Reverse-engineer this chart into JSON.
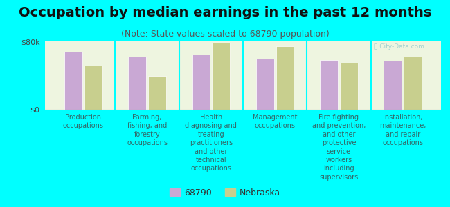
{
  "title": "Occupation by median earnings in the past 12 months",
  "subtitle": "(Note: State values scaled to 68790 population)",
  "categories": [
    "Production\noccupations",
    "Farming,\nfishing, and\nforestry\noccupations",
    "Health\ndiagnosing and\ntreating\npractitioners\nand other\ntechnical\noccupations",
    "Management\noccupations",
    "Fire fighting\nand prevention,\nand other\nprotective\nservice\nworkers\nincluding\nsupervisors",
    "Installation,\nmaintenance,\nand repair\noccupations"
  ],
  "values_68790": [
    68000,
    62000,
    65000,
    60000,
    58000,
    57000
  ],
  "values_nebraska": [
    52000,
    40000,
    78000,
    74000,
    55000,
    62000
  ],
  "bar_color_68790": "#c9a8d4",
  "bar_color_nebraska": "#c8cf8e",
  "background_color": "#00ffff",
  "plot_bg_color": "#eef5e0",
  "ylim": [
    0,
    80000
  ],
  "ytick_labels": [
    "$0",
    "$80k"
  ],
  "legend_label_68790": "68790",
  "legend_label_nebraska": "Nebraska",
  "watermark": "ⓒ City-Data.com",
  "title_fontsize": 14,
  "subtitle_fontsize": 9,
  "label_fontsize": 7,
  "legend_fontsize": 9,
  "tick_label_color": "#336666",
  "title_color": "#111111"
}
